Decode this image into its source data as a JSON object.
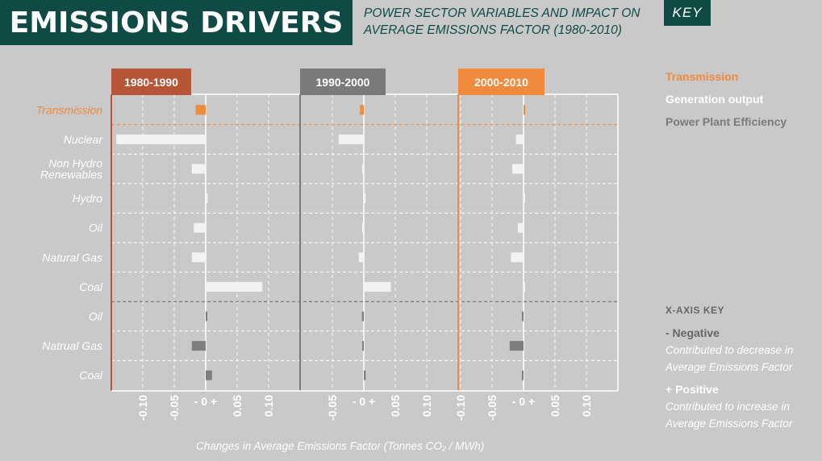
{
  "header": {
    "title": "EMISSIONS DRIVERS",
    "subtitle_line1": "POWER SECTOR VARIABLES AND IMPACT ON",
    "subtitle_line2": "AVERAGE EMISSIONS FACTOR (1980-2010)",
    "key_label": "KEY"
  },
  "legend": {
    "transmission": "Transmission",
    "generation": "Generation output",
    "efficiency": "Power Plant Efficiency"
  },
  "xaxis_key": {
    "title": "X-AXIS KEY",
    "negative_label": "- Negative",
    "negative_desc": "Contributed to decrease in Average Emissions Factor",
    "positive_label": "+ Positive",
    "positive_desc": "Contributed to increase in Average Emissions Factor"
  },
  "colors": {
    "background": "#c9c9c9",
    "title_bg": "#0f4a45",
    "transmission": "#f08a3c",
    "generation": "#f2f2f2",
    "efficiency": "#7f7f7f",
    "panel_1980": "#b65636",
    "panel_1990": "#7a7a7a",
    "panel_2000": "#f08a3c"
  },
  "chart_data": {
    "type": "bar",
    "orientation": "horizontal",
    "title": "Changes in Average Emissions Factor (Tonnes CO₂ / MWh)",
    "xlabel": "Changes in Average Emissions Factor (Tonnes CO₂ / MWh)",
    "xlim": [
      -0.15,
      0.15
    ],
    "xticks": [
      "-0.10",
      "-0.05",
      "- 0 +",
      "0.05",
      "0.10"
    ],
    "xtick_values": [
      -0.1,
      -0.05,
      0,
      0.05,
      0.1
    ],
    "categories": [
      {
        "label": "Transmission",
        "group": "transmission"
      },
      {
        "label": "Nuclear",
        "group": "generation"
      },
      {
        "label": "Non Hydro\nRenewables",
        "group": "generation"
      },
      {
        "label": "Hydro",
        "group": "generation"
      },
      {
        "label": "Oil",
        "group": "generation"
      },
      {
        "label": "Natural Gas",
        "group": "generation"
      },
      {
        "label": "Coal",
        "group": "generation"
      },
      {
        "label": "Oil",
        "group": "efficiency"
      },
      {
        "label": "Natrual Gas",
        "group": "efficiency"
      },
      {
        "label": "Coal",
        "group": "efficiency"
      }
    ],
    "panels": [
      {
        "label": "1980-1990",
        "values": [
          -0.016,
          -0.142,
          -0.022,
          0.003,
          -0.019,
          -0.022,
          0.09,
          0.002,
          -0.022,
          0.01
        ]
      },
      {
        "label": "1990-2000",
        "values": [
          -0.006,
          -0.04,
          -0.002,
          0.003,
          -0.001,
          -0.008,
          0.043,
          -0.003,
          -0.002,
          0.003
        ]
      },
      {
        "label": "2000-2010",
        "values": [
          0.002,
          -0.012,
          -0.018,
          0.001,
          -0.009,
          -0.02,
          0.0,
          -0.001,
          -0.022,
          -0.002
        ]
      }
    ]
  }
}
